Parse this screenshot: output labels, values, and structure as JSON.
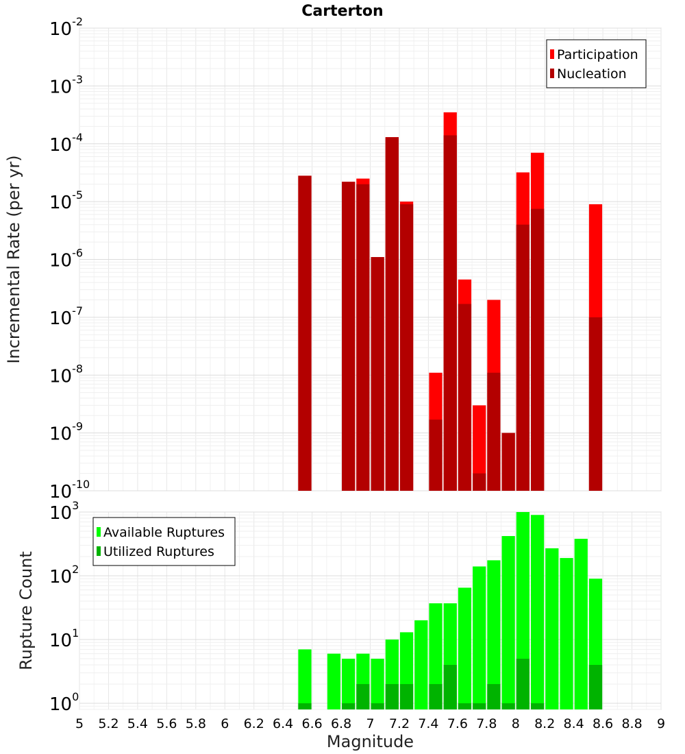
{
  "chart_data": [
    {
      "type": "bar",
      "panel": "top",
      "title": "Carterton",
      "ylabel": "Incremental Rate (per yr)",
      "ylog": true,
      "ylim": [
        1e-10,
        0.01
      ],
      "xlim": [
        5,
        9
      ],
      "bin_width": 0.1,
      "yticks": [
        {
          "base": "10",
          "exp": "-2",
          "value": 0.01
        },
        {
          "base": "10",
          "exp": "-3",
          "value": 0.001
        },
        {
          "base": "10",
          "exp": "-4",
          "value": 0.0001
        },
        {
          "base": "10",
          "exp": "-5",
          "value": 1e-05
        },
        {
          "base": "10",
          "exp": "-6",
          "value": 1e-06
        },
        {
          "base": "10",
          "exp": "-7",
          "value": 1e-07
        },
        {
          "base": "10",
          "exp": "-8",
          "value": 1e-08
        },
        {
          "base": "10",
          "exp": "-9",
          "value": 1e-09
        },
        {
          "base": "10",
          "exp": "-10",
          "value": 1e-10
        }
      ],
      "legend": {
        "placement": "top-right",
        "entries": [
          {
            "label": "Participation",
            "color": "#ff0000"
          },
          {
            "label": "Nucleation",
            "color": "#b30000"
          }
        ]
      },
      "series": [
        {
          "name": "Participation",
          "color": "#ff0000",
          "x": [
            6.55,
            6.85,
            6.95,
            7.05,
            7.15,
            7.25,
            7.45,
            7.55,
            7.65,
            7.75,
            7.85,
            7.95,
            8.05,
            8.15,
            8.55
          ],
          "values": [
            2.8e-05,
            2.2e-05,
            2.5e-05,
            1.1e-06,
            0.00013,
            1e-05,
            1.1e-08,
            0.00035,
            4.5e-07,
            3e-09,
            2e-07,
            1e-09,
            3.2e-05,
            7e-05,
            9e-06
          ]
        },
        {
          "name": "Nucleation",
          "color": "#b30000",
          "x": [
            6.55,
            6.85,
            6.95,
            7.05,
            7.15,
            7.25,
            7.45,
            7.55,
            7.65,
            7.75,
            7.85,
            7.95,
            8.05,
            8.15,
            8.55
          ],
          "values": [
            2.8e-05,
            2.2e-05,
            2e-05,
            1.1e-06,
            0.00013,
            9e-06,
            1.7e-09,
            0.00014,
            1.7e-07,
            2e-10,
            1.1e-08,
            1e-09,
            4e-06,
            7.5e-06,
            1e-07
          ]
        }
      ]
    },
    {
      "type": "bar",
      "panel": "bottom",
      "ylabel": "Rupture Count",
      "xlabel": "Magnitude",
      "ylog": true,
      "ylim": [
        0.8,
        1000
      ],
      "xlim": [
        5,
        9
      ],
      "bin_width": 0.1,
      "xticks": [
        "5",
        "5.2",
        "5.4",
        "5.6",
        "5.8",
        "6",
        "6.2",
        "6.4",
        "6.6",
        "6.8",
        "7",
        "7.2",
        "7.4",
        "7.6",
        "7.8",
        "8",
        "8.2",
        "8.4",
        "8.6",
        "8.8",
        "9"
      ],
      "yticks": [
        {
          "base": "10",
          "exp": "3",
          "value": 1000
        },
        {
          "base": "10",
          "exp": "2",
          "value": 100
        },
        {
          "base": "10",
          "exp": "1",
          "value": 10
        },
        {
          "base": "10",
          "exp": "0",
          "value": 1
        }
      ],
      "legend": {
        "placement": "top-left",
        "entries": [
          {
            "label": "Available Ruptures",
            "color": "#00ff00"
          },
          {
            "label": "Utilized Ruptures",
            "color": "#00b300"
          }
        ]
      },
      "series": [
        {
          "name": "Available Ruptures",
          "color": "#00ff00",
          "x": [
            6.55,
            6.75,
            6.85,
            6.95,
            7.05,
            7.15,
            7.25,
            7.35,
            7.45,
            7.55,
            7.65,
            7.75,
            7.85,
            7.95,
            8.05,
            8.15,
            8.25,
            8.35,
            8.45,
            8.55
          ],
          "values": [
            7,
            6,
            5,
            6,
            5,
            10,
            13,
            20,
            37,
            37,
            65,
            140,
            175,
            420,
            1000,
            900,
            270,
            190,
            380,
            90
          ]
        },
        {
          "name": "Utilized Ruptures",
          "color": "#00b300",
          "x": [
            6.55,
            6.85,
            6.95,
            7.05,
            7.15,
            7.25,
            7.45,
            7.55,
            7.65,
            7.75,
            7.85,
            7.95,
            8.05,
            8.15,
            8.55
          ],
          "values": [
            1,
            1,
            2,
            1,
            2,
            2,
            2,
            4,
            1,
            1,
            2,
            1,
            5,
            1,
            4
          ]
        }
      ]
    }
  ]
}
